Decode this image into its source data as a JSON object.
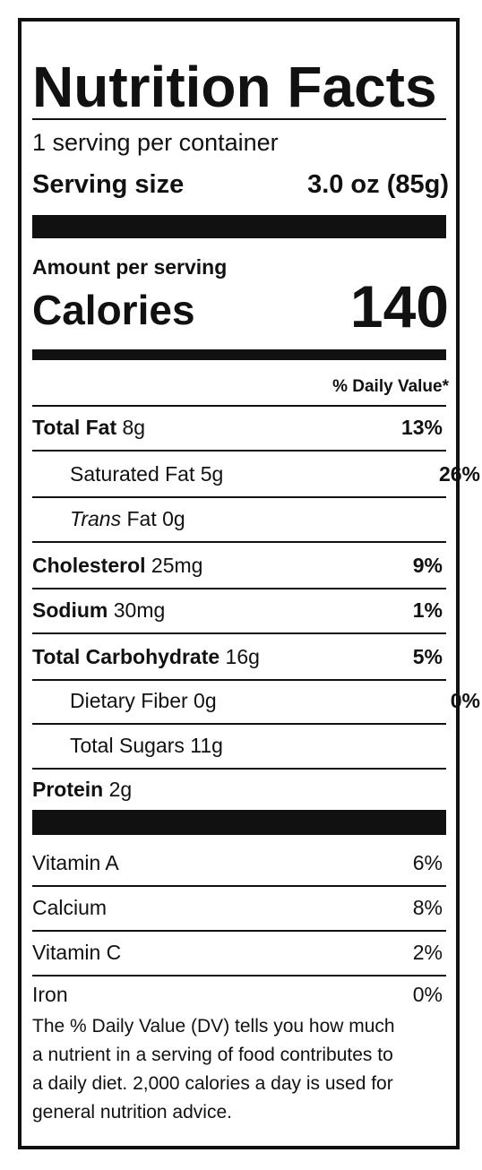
{
  "header": {
    "title": "Nutrition Facts",
    "servings": "1 serving per container",
    "serving_size_label": "Serving size",
    "serving_size": "3.0 oz (85g)"
  },
  "calories": {
    "amount_label": "Amount per serving",
    "label": "Calories",
    "value": "140"
  },
  "daily_value_header": "% Daily Value*",
  "nutrients": [
    {
      "name": "Total Fat",
      "amount": "8g",
      "dv": "13%"
    },
    {
      "name": "Saturated Fat",
      "amount": "5g",
      "dv": "26%",
      "sub": true
    },
    {
      "name_italic": "Trans",
      "name": "Fat",
      "amount": "0g",
      "sub": true
    },
    {
      "name": "Cholesterol",
      "amount": "25mg",
      "dv": "9%"
    },
    {
      "name": "Sodium",
      "amount": "30mg",
      "dv": "1%"
    },
    {
      "name": "Total Carbohydrate",
      "amount": "16g",
      "dv": "5%"
    },
    {
      "name": "Dietary Fiber",
      "amount": "0g",
      "dv": "0%",
      "sub": true
    },
    {
      "name": "Total Sugars",
      "amount": "11g",
      "sub": true
    },
    {
      "name": "Protein",
      "amount": "2g"
    }
  ],
  "vitamins": [
    {
      "name": "Vitamin A",
      "dv": "6%"
    },
    {
      "name": "Calcium",
      "dv": "8%"
    },
    {
      "name": "Vitamin C",
      "dv": "2%"
    },
    {
      "name": "Iron",
      "dv": "0%"
    }
  ],
  "footnote": [
    "The % Daily Value (DV) tells you how much",
    "a nutrient in a serving of food contributes to",
    "a daily diet. 2,000 calories a day is used for",
    "general nutrition advice."
  ]
}
